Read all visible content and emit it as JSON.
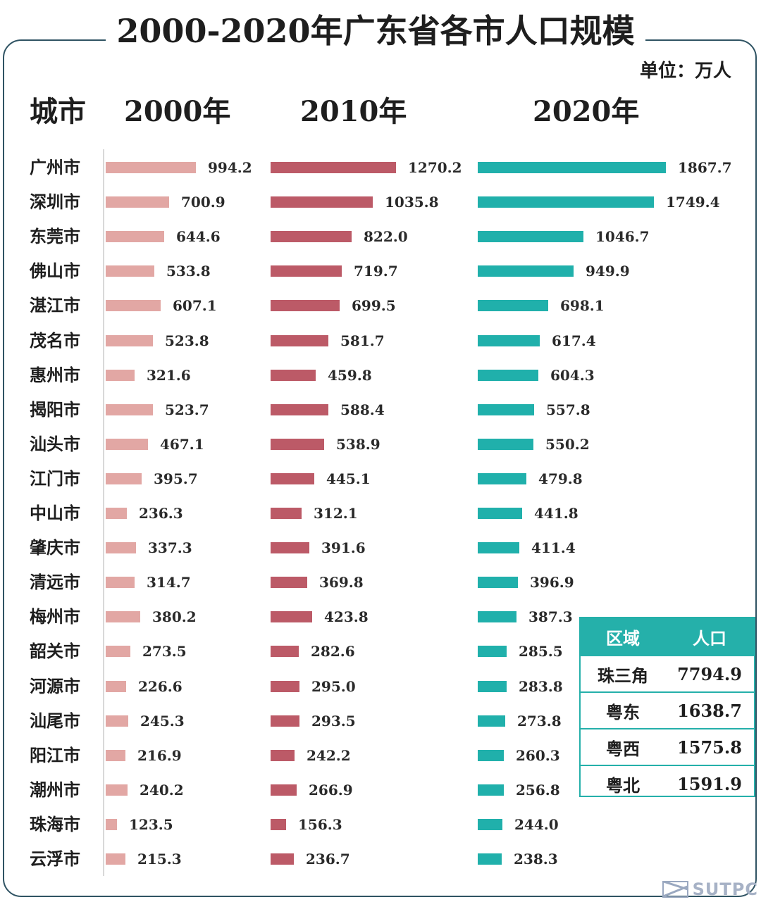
{
  "title": "2000-2020年广东省各市人口规模",
  "unit": "单位：万人",
  "colors": {
    "y2000": "#e2a7a4",
    "y2010": "#bc5a67",
    "y2020": "#20b0ab",
    "frame": "#2f5363"
  },
  "chart_data": {
    "type": "bar",
    "orientation": "horizontal",
    "categories_header": "城市",
    "categories": [
      "广州市",
      "深圳市",
      "东莞市",
      "佛山市",
      "湛江市",
      "茂名市",
      "惠州市",
      "揭阳市",
      "汕头市",
      "江门市",
      "中山市",
      "肇庆市",
      "清远市",
      "梅州市",
      "韶关市",
      "河源市",
      "汕尾市",
      "阳江市",
      "潮州市",
      "珠海市",
      "云浮市"
    ],
    "series": [
      {
        "name": "2000年",
        "values": [
          994.2,
          700.9,
          644.6,
          533.8,
          607.1,
          523.8,
          321.6,
          523.7,
          467.1,
          395.7,
          236.3,
          337.3,
          314.7,
          380.2,
          273.5,
          226.6,
          245.3,
          216.9,
          240.2,
          123.5,
          215.3
        ]
      },
      {
        "name": "2010年",
        "values": [
          1270.2,
          1035.8,
          822.0,
          719.7,
          699.5,
          581.7,
          459.8,
          588.4,
          538.9,
          445.1,
          312.1,
          391.6,
          369.8,
          423.8,
          282.6,
          295.0,
          293.5,
          242.2,
          266.9,
          156.3,
          236.7
        ]
      },
      {
        "name": "2020年",
        "values": [
          1867.7,
          1749.4,
          1046.7,
          949.9,
          698.1,
          617.4,
          604.3,
          557.8,
          550.2,
          479.8,
          441.8,
          411.4,
          396.9,
          387.3,
          285.5,
          283.8,
          273.8,
          260.3,
          256.8,
          244.0,
          238.3
        ]
      }
    ]
  },
  "region_table": {
    "headers": [
      "区域",
      "人口"
    ],
    "rows": [
      {
        "region": "珠三角",
        "population": "7794.9"
      },
      {
        "region": "粤东",
        "population": "1638.7"
      },
      {
        "region": "粤西",
        "population": "1575.8"
      },
      {
        "region": "粤北",
        "population": "1591.9"
      }
    ]
  },
  "logo": {
    "text": "SUTPC"
  }
}
